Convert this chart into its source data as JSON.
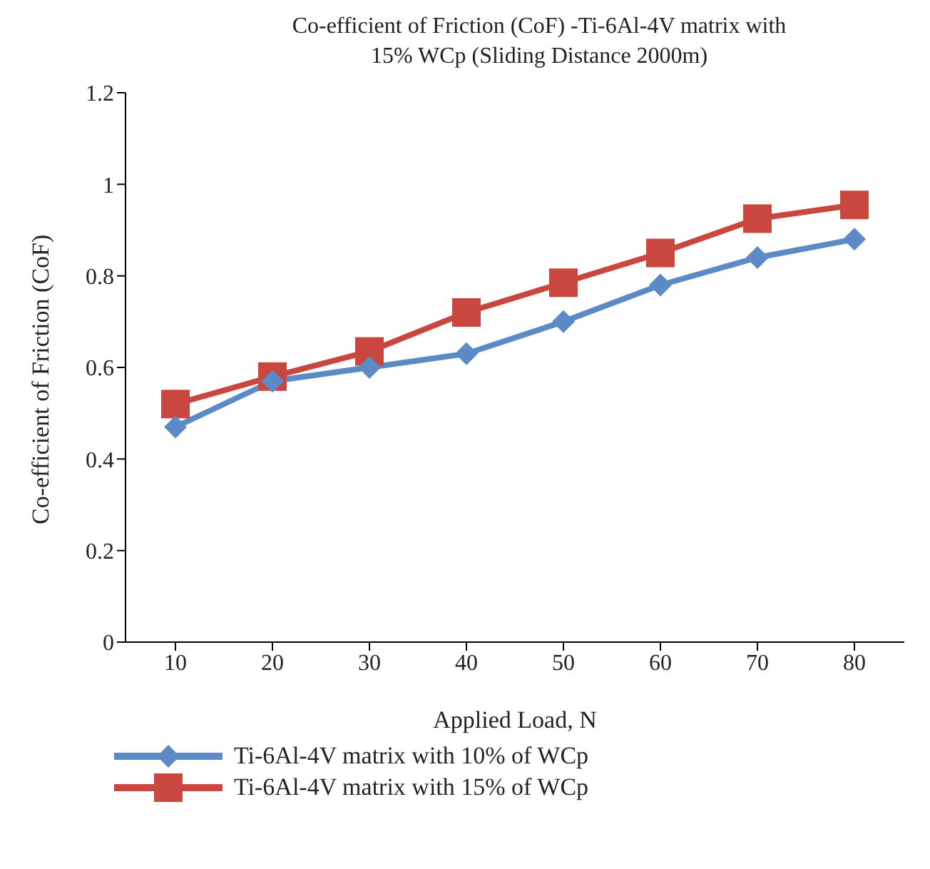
{
  "chart_data": {
    "type": "line",
    "title": "Co-efficient of Friction (CoF) -Ti-6Al-4V matrix with 15% WCp (Sliding Distance 2000m)",
    "xlabel": "Applied Load, N",
    "ylabel": "Co-efficient of Friction (CoF)",
    "categories": [
      "10",
      "20",
      "30",
      "40",
      "50",
      "60",
      "70",
      "80"
    ],
    "series": [
      {
        "name": "Ti-6Al-4V matrix with 10% of WCp",
        "color": "#5b8ac6",
        "marker": "diamond",
        "values": [
          0.47,
          0.57,
          0.6,
          0.63,
          0.7,
          0.78,
          0.84,
          0.88
        ]
      },
      {
        "name": "Ti-6Al-4V matrix with 15% of WCp",
        "color": "#c9473f",
        "marker": "square",
        "values": [
          0.52,
          0.58,
          0.635,
          0.72,
          0.785,
          0.85,
          0.925,
          0.955
        ]
      }
    ],
    "ylim": [
      0,
      1.2
    ],
    "yticks": [
      0,
      0.2,
      0.4,
      0.6,
      0.8,
      1,
      1.2
    ],
    "grid": false,
    "legend": "bottom left",
    "line_style": "solid"
  }
}
